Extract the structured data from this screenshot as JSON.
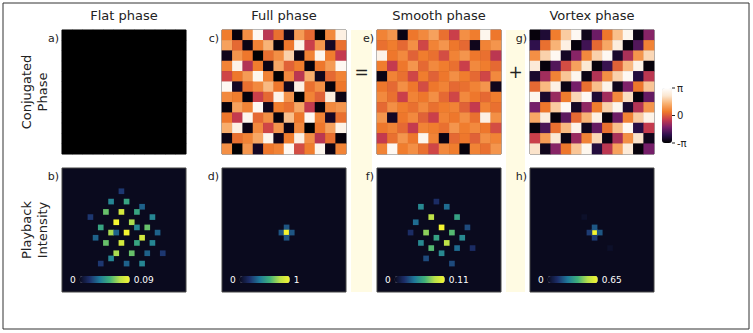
{
  "chart_data": [
    {
      "type": "heatmap",
      "label": "a)",
      "title": "Flat phase",
      "row_label": "Conjugated Phase",
      "z": [
        [
          -3.14,
          -3.14,
          -3.14,
          -3.14,
          -3.14,
          -3.14,
          -3.14,
          -3.14,
          -3.14,
          -3.14,
          -3.14,
          -3.14
        ],
        [
          -3.14,
          -3.14,
          -3.14,
          -3.14,
          -3.14,
          -3.14,
          -3.14,
          -3.14,
          -3.14,
          -3.14,
          -3.14,
          -3.14
        ],
        [
          -3.14,
          -3.14,
          -3.14,
          -3.14,
          -3.14,
          -3.14,
          -3.14,
          -3.14,
          -3.14,
          -3.14,
          -3.14,
          -3.14
        ],
        [
          -3.14,
          -3.14,
          -3.14,
          -3.14,
          -3.14,
          -3.14,
          -3.14,
          -3.14,
          -3.14,
          -3.14,
          -3.14,
          -3.14
        ],
        [
          -3.14,
          -3.14,
          -3.14,
          -3.14,
          -3.14,
          -3.14,
          -3.14,
          -3.14,
          -3.14,
          -3.14,
          -3.14,
          -3.14
        ],
        [
          -3.14,
          -3.14,
          -3.14,
          -3.14,
          -3.14,
          -3.14,
          -3.14,
          -3.14,
          -3.14,
          -3.14,
          -3.14,
          -3.14
        ],
        [
          -3.14,
          -3.14,
          -3.14,
          -3.14,
          -3.14,
          -3.14,
          -3.14,
          -3.14,
          -3.14,
          -3.14,
          -3.14,
          -3.14
        ],
        [
          -3.14,
          -3.14,
          -3.14,
          -3.14,
          -3.14,
          -3.14,
          -3.14,
          -3.14,
          -3.14,
          -3.14,
          -3.14,
          -3.14
        ],
        [
          -3.14,
          -3.14,
          -3.14,
          -3.14,
          -3.14,
          -3.14,
          -3.14,
          -3.14,
          -3.14,
          -3.14,
          -3.14,
          -3.14
        ],
        [
          -3.14,
          -3.14,
          -3.14,
          -3.14,
          -3.14,
          -3.14,
          -3.14,
          -3.14,
          -3.14,
          -3.14,
          -3.14,
          -3.14
        ],
        [
          -3.14,
          -3.14,
          -3.14,
          -3.14,
          -3.14,
          -3.14,
          -3.14,
          -3.14,
          -3.14,
          -3.14,
          -3.14,
          -3.14
        ],
        [
          -3.14,
          -3.14,
          -3.14,
          -3.14,
          -3.14,
          -3.14,
          -3.14,
          -3.14,
          -3.14,
          -3.14,
          -3.14,
          -3.14
        ]
      ]
    },
    {
      "type": "heatmap",
      "label": "b)",
      "row_label": "Playback Intensity",
      "grid_size": 24,
      "cells": [
        [
          9,
          6,
          0.04
        ],
        [
          12,
          6,
          0.05
        ],
        [
          15,
          7,
          0.03
        ],
        [
          8,
          8,
          0.06
        ],
        [
          11,
          8,
          0.08
        ],
        [
          14,
          8,
          0.05
        ],
        [
          17,
          9,
          0.04
        ],
        [
          10,
          10,
          0.09
        ],
        [
          13,
          10,
          0.07
        ],
        [
          7,
          11,
          0.05
        ],
        [
          16,
          11,
          0.06
        ],
        [
          9,
          12,
          0.07
        ],
        [
          12,
          12,
          0.09
        ],
        [
          15,
          13,
          0.08
        ],
        [
          8,
          14,
          0.06
        ],
        [
          11,
          14,
          0.08
        ],
        [
          14,
          14,
          0.05
        ],
        [
          17,
          14,
          0.04
        ],
        [
          10,
          16,
          0.07
        ],
        [
          13,
          16,
          0.06
        ],
        [
          16,
          16,
          0.03
        ],
        [
          6,
          13,
          0.03
        ],
        [
          9,
          17,
          0.04
        ],
        [
          12,
          18,
          0.03
        ],
        [
          15,
          18,
          0.04
        ],
        [
          18,
          12,
          0.03
        ],
        [
          5,
          9,
          0.02
        ],
        [
          19,
          16,
          0.02
        ],
        [
          11,
          4,
          0.02
        ],
        [
          7,
          18,
          0.02
        ],
        [
          14,
          11,
          0.04
        ],
        [
          10,
          12,
          0.03
        ]
      ],
      "colorbar": {
        "range": [
          0,
          0.09
        ],
        "ticks": [
          0,
          0.09
        ]
      }
    },
    {
      "type": "heatmap",
      "label": "c)",
      "title": "Full phase",
      "z": [
        [
          0.5,
          -3.0,
          0.8,
          2.9,
          -0.6,
          0.3,
          -2.8,
          1.0,
          0.2,
          -3.1,
          0.7,
          2.6
        ],
        [
          1.1,
          0.2,
          -2.9,
          0.6,
          1.4,
          -3.0,
          0.4,
          2.7,
          -0.4,
          0.9,
          -2.7,
          0.3
        ],
        [
          -2.8,
          0.9,
          0.4,
          -3.1,
          0.3,
          0.8,
          1.9,
          -2.9,
          0.6,
          2.8,
          0.5,
          -0.5
        ],
        [
          0.6,
          2.7,
          -0.7,
          0.5,
          -2.9,
          1.2,
          0.1,
          0.5,
          -3.0,
          0.4,
          1.0,
          2.9
        ],
        [
          -0.3,
          0.4,
          1.0,
          2.8,
          0.6,
          -3.1,
          0.7,
          -0.6,
          1.3,
          -2.8,
          0.2,
          0.6
        ],
        [
          2.9,
          -2.7,
          0.3,
          0.7,
          1.5,
          0.4,
          -2.8,
          2.6,
          0.3,
          0.8,
          -3.0,
          0.4
        ],
        [
          0.7,
          0.5,
          -3.0,
          -0.4,
          0.2,
          2.7,
          0.9,
          -3.1,
          0.6,
          0.1,
          2.5,
          -2.9
        ],
        [
          -3.0,
          1.1,
          0.6,
          2.9,
          -2.8,
          0.5,
          0.3,
          1.2,
          -0.5,
          -3.0,
          0.7,
          0.9
        ],
        [
          0.4,
          -0.5,
          2.8,
          0.2,
          0.8,
          -3.0,
          1.6,
          0.4,
          2.9,
          0.6,
          -2.7,
          0.3
        ],
        [
          1.3,
          2.6,
          -2.9,
          0.7,
          -0.3,
          0.9,
          -2.9,
          0.7,
          -3.1,
          0.4,
          1.1,
          2.7
        ],
        [
          -2.9,
          0.3,
          0.6,
          1.2,
          2.8,
          -2.8,
          0.5,
          2.6,
          0.8,
          -0.6,
          0.3,
          -3.0
        ],
        [
          0.8,
          -3.1,
          0.9,
          -2.7,
          0.4,
          0.6,
          2.9,
          -0.2,
          0.5,
          2.8,
          -2.9,
          0.6
        ]
      ]
    },
    {
      "type": "heatmap",
      "label": "d)",
      "grid_size": 24,
      "cells": [
        [
          12,
          11,
          0.3
        ],
        [
          11,
          12,
          0.3
        ],
        [
          12,
          12,
          1
        ],
        [
          13,
          12,
          0.3
        ],
        [
          12,
          13,
          0.3
        ]
      ],
      "colorbar": {
        "range": [
          0,
          1
        ],
        "ticks": [
          0,
          1
        ]
      }
    },
    {
      "type": "heatmap",
      "label": "e)",
      "title": "Smooth phase",
      "annotation": "=",
      "z": [
        [
          0.6,
          0.9,
          -2.9,
          0.4,
          0.7,
          1.1,
          0.3,
          -0.4,
          0.8,
          0.5,
          2.8,
          0.4
        ],
        [
          0.3,
          0.5,
          0.2,
          0.8,
          -0.3,
          0.6,
          0.9,
          0.4,
          0.2,
          -2.8,
          0.6,
          0.9
        ],
        [
          2.7,
          0.4,
          0.7,
          0.1,
          0.5,
          0.3,
          -0.2,
          0.6,
          0.9,
          0.4,
          0.3,
          -0.6
        ],
        [
          0.5,
          -0.5,
          0.4,
          0.9,
          0.2,
          0.7,
          0.5,
          0.3,
          -0.4,
          0.7,
          0.5,
          0.2
        ],
        [
          -2.9,
          0.6,
          0.3,
          -0.3,
          0.5,
          0.1,
          0.4,
          0.8,
          0.5,
          0.2,
          -0.3,
          0.7
        ],
        [
          0.4,
          0.2,
          0.8,
          0.4,
          -0.2,
          0.4,
          0.6,
          0.2,
          0.3,
          0.6,
          0.9,
          -2.8
        ],
        [
          0.7,
          0.3,
          -0.4,
          0.6,
          0.4,
          0.8,
          0.2,
          -0.3,
          0.7,
          0.4,
          0.2,
          0.5
        ],
        [
          0.2,
          0.8,
          0.5,
          0.3,
          0.7,
          0.3,
          0.5,
          0.6,
          0.1,
          -0.5,
          0.6,
          0.3
        ],
        [
          0.9,
          -2.7,
          0.4,
          0.7,
          0.1,
          -0.4,
          0.6,
          0.4,
          0.8,
          0.3,
          2.6,
          0.8
        ],
        [
          0.4,
          0.6,
          0.2,
          -0.5,
          0.6,
          0.5,
          0.3,
          0.9,
          0.5,
          0.7,
          0.4,
          -0.2
        ],
        [
          -0.5,
          0.3,
          0.9,
          0.4,
          2.8,
          0.6,
          -2.9,
          0.2,
          0.4,
          0.1,
          0.8,
          0.6
        ],
        [
          0.6,
          2.9,
          0.5,
          0.8,
          0.3,
          -0.3,
          0.7,
          0.5,
          -3.0,
          0.6,
          0.3,
          0.9
        ]
      ]
    },
    {
      "type": "heatmap",
      "label": "f)",
      "grid_size": 24,
      "cells": [
        [
          8,
          7,
          0.05
        ],
        [
          13,
          7,
          0.04
        ],
        [
          10,
          9,
          0.09
        ],
        [
          15,
          9,
          0.06
        ],
        [
          7,
          10,
          0.04
        ],
        [
          12,
          11,
          0.11
        ],
        [
          9,
          12,
          0.08
        ],
        [
          14,
          12,
          0.07
        ],
        [
          11,
          13,
          0.06
        ],
        [
          16,
          13,
          0.05
        ],
        [
          8,
          14,
          0.05
        ],
        [
          13,
          14,
          0.09
        ],
        [
          10,
          15,
          0.07
        ],
        [
          15,
          15,
          0.04
        ],
        [
          12,
          16,
          0.05
        ],
        [
          9,
          17,
          0.03
        ],
        [
          17,
          11,
          0.03
        ],
        [
          6,
          12,
          0.02
        ],
        [
          14,
          18,
          0.03
        ],
        [
          11,
          6,
          0.02
        ],
        [
          18,
          15,
          0.02
        ]
      ],
      "colorbar": {
        "range": [
          0,
          0.11
        ],
        "ticks": [
          0,
          0.11
        ]
      }
    },
    {
      "type": "heatmap",
      "label": "g)",
      "title": "Vortex phase",
      "annotation": "+",
      "z": [
        [
          -3.0,
          -2.5,
          0.5,
          1.8,
          2.9,
          -2.8,
          -1.5,
          0.4,
          1.6,
          2.8,
          -2.9,
          -1.2
        ],
        [
          -2.2,
          0.3,
          1.4,
          2.6,
          -3.0,
          -2.0,
          0.2,
          1.2,
          2.5,
          -3.0,
          -1.8,
          0.6
        ],
        [
          0.8,
          1.9,
          2.9,
          -2.7,
          -1.2,
          0.7,
          1.9,
          2.9,
          -2.6,
          -0.8,
          0.9,
          2.0
        ],
        [
          2.4,
          -3.0,
          -1.8,
          -0.2,
          1.1,
          2.3,
          -3.0,
          -2.1,
          0.1,
          1.5,
          2.7,
          -3.0
        ],
        [
          -2.6,
          -0.9,
          0.6,
          1.7,
          2.8,
          -2.9,
          -0.7,
          0.8,
          1.9,
          2.9,
          -2.4,
          -0.6
        ],
        [
          0.2,
          1.5,
          2.6,
          -2.9,
          -1.4,
          0.3,
          1.6,
          2.7,
          -2.8,
          -1.3,
          0.4,
          1.7
        ],
        [
          2.8,
          -2.6,
          -1.0,
          0.5,
          2.0,
          2.9,
          -2.5,
          -0.9,
          0.7,
          2.1,
          -3.0,
          -1.6
        ],
        [
          -1.4,
          0.4,
          1.8,
          2.9,
          -2.7,
          -1.1,
          0.5,
          1.9,
          2.8,
          -2.6,
          -0.7,
          0.9
        ],
        [
          1.2,
          2.5,
          -3.0,
          -1.7,
          0.2,
          1.4,
          2.6,
          -3.0,
          -1.5,
          0.6,
          1.8,
          2.7
        ],
        [
          -3.0,
          -1.9,
          0.3,
          1.5,
          2.7,
          -2.8,
          -1.6,
          0.3,
          1.6,
          2.9,
          -2.3,
          -0.5
        ],
        [
          -0.4,
          1.0,
          2.3,
          -2.9,
          -1.0,
          0.6,
          2.0,
          -2.9,
          -0.8,
          0.8,
          2.2,
          -2.8
        ],
        [
          2.2,
          -2.8,
          -1.2,
          0.4,
          1.7,
          2.8,
          -2.4,
          -0.6,
          1.1,
          2.4,
          -3.0,
          -1.4
        ]
      ],
      "colorbar": {
        "range": [
          -3.14,
          3.14
        ],
        "ticks": [
          {
            "value": 3.14,
            "label": "π"
          },
          {
            "value": 0,
            "label": "0"
          },
          {
            "value": -3.14,
            "label": "-π"
          }
        ]
      }
    },
    {
      "type": "heatmap",
      "label": "h)",
      "grid_size": 24,
      "cells": [
        [
          12,
          12,
          0.65
        ],
        [
          12,
          11,
          0.2
        ],
        [
          11,
          12,
          0.15
        ],
        [
          13,
          12,
          0.2
        ],
        [
          12,
          13,
          0.15
        ],
        [
          10,
          9,
          0.02
        ],
        [
          15,
          15,
          0.02
        ]
      ],
      "colorbar": {
        "range": [
          0,
          0.65
        ],
        "ticks": [
          0,
          0.65
        ]
      }
    }
  ]
}
